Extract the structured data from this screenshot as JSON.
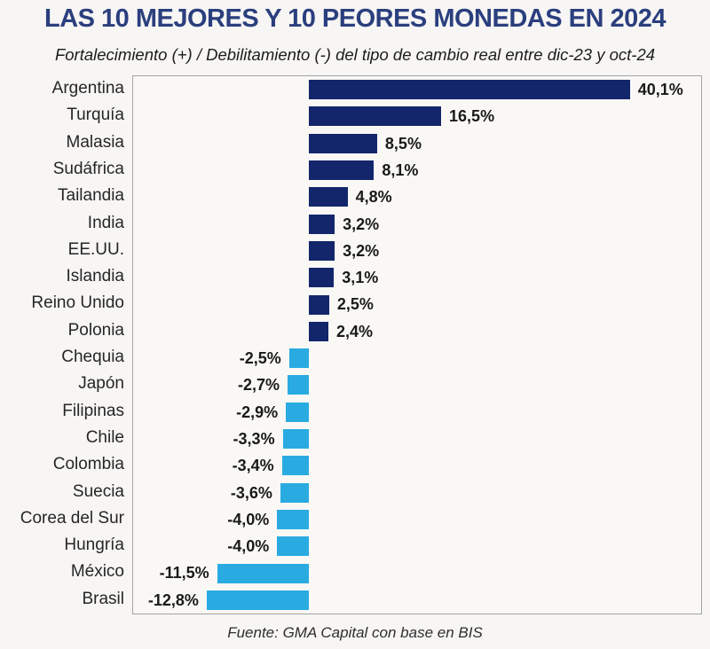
{
  "header": {
    "title": "LAS 10 MEJORES Y 10 PEORES MONEDAS EN 2024",
    "subtitle": "Fortalecimiento (+) / Debilitamiento (-) del tipo de cambio real entre dic-23 y oct-24"
  },
  "footer": {
    "source": "Fuente: GMA Capital con base en BIS"
  },
  "chart_data": {
    "type": "bar",
    "orientation": "horizontal",
    "title": "LAS 10 MEJORES Y 10 PEORES MONEDAS EN 2024",
    "subtitle": "Fortalecimiento (+) / Debilitamiento (-) del tipo de cambio real entre dic-23 y oct-24",
    "source": "Fuente: GMA Capital con base en BIS",
    "categories": [
      "Argentina",
      "Turquía",
      "Malasia",
      "Sudáfrica",
      "Tailandia",
      "India",
      "EE.UU.",
      "Islandia",
      "Reino Unido",
      "Polonia",
      "Chequia",
      "Japón",
      "Filipinas",
      "Chile",
      "Colombia",
      "Suecia",
      "Corea del Sur",
      "Hungría",
      "México",
      "Brasil"
    ],
    "values": [
      40.1,
      16.5,
      8.5,
      8.1,
      4.8,
      3.2,
      3.2,
      3.1,
      2.5,
      2.4,
      -2.5,
      -2.7,
      -2.9,
      -3.3,
      -3.4,
      -3.6,
      -4.0,
      -4.0,
      -11.5,
      -12.8
    ],
    "value_labels": [
      "40,1%",
      "16,5%",
      "8,5%",
      "8,1%",
      "4,8%",
      "3,2%",
      "3,2%",
      "3,1%",
      "2,5%",
      "2,4%",
      "-2,5%",
      "-2,7%",
      "-2,9%",
      "-3,3%",
      "-3,4%",
      "-3,6%",
      "-4,0%",
      "-4,0%",
      "-11,5%",
      "-12,8%"
    ],
    "xlabel": "",
    "ylabel": "",
    "xlim": [
      -22,
      49
    ],
    "grid": false,
    "legend": false,
    "colors": {
      "positive": "#13266b",
      "negative": "#29abe2"
    }
  }
}
